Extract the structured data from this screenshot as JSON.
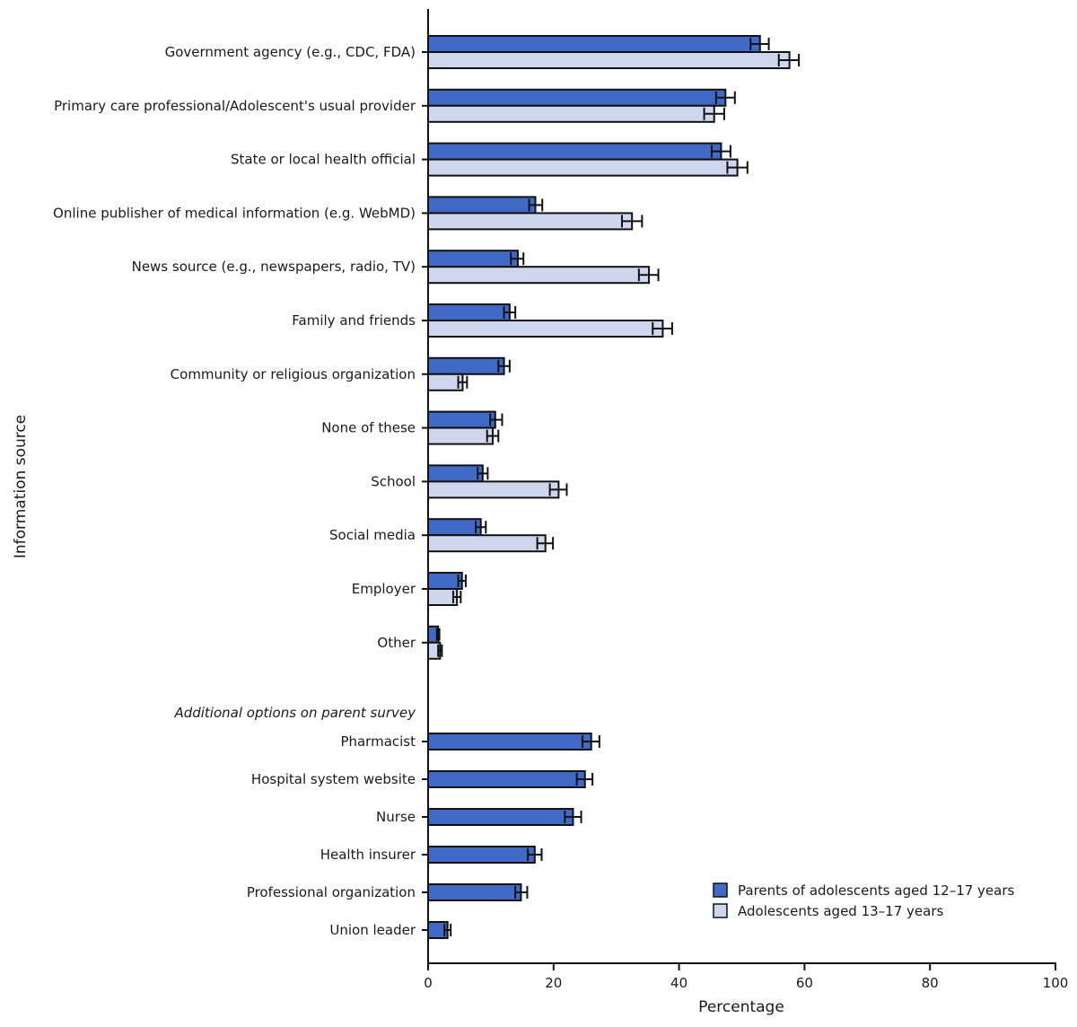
{
  "chart_data": {
    "type": "bar",
    "orientation": "horizontal",
    "xlabel": "Percentage",
    "ylabel": "Information source",
    "xlim": [
      0,
      100
    ],
    "xticks": [
      0,
      20,
      40,
      60,
      80,
      100
    ],
    "grid": false,
    "legend_position": "bottom-right",
    "colors": {
      "parents": "#4169c6",
      "adolescents": "#cfd7ee"
    },
    "series": [
      {
        "name": "Parents of adolescents aged 12–17 years",
        "key": "parents"
      },
      {
        "name": "Adolescents aged 13–17 years",
        "key": "adolescents"
      }
    ],
    "categories": [
      {
        "label": "Government agency (e.g., CDC, FDA)",
        "parents": [
          52.9,
          51.4,
          54.3
        ],
        "adolescents": [
          57.6,
          55.9,
          59.1
        ]
      },
      {
        "label": "Primary care professional/Adolescent's usual provider",
        "parents": [
          47.4,
          45.9,
          48.9
        ],
        "adolescents": [
          45.6,
          44.0,
          47.2
        ]
      },
      {
        "label": "State or local health official",
        "parents": [
          46.7,
          45.2,
          48.2
        ],
        "adolescents": [
          49.3,
          47.7,
          50.9
        ]
      },
      {
        "label": "Online publisher of medical information (e.g. WebMD)",
        "parents": [
          17.1,
          16.1,
          18.2
        ],
        "adolescents": [
          32.5,
          30.9,
          34.1
        ]
      },
      {
        "label": "News source (e.g., newspapers, radio, TV)",
        "parents": [
          14.3,
          13.2,
          15.2
        ],
        "adolescents": [
          35.2,
          33.6,
          36.7
        ]
      },
      {
        "label": "Family and friends",
        "parents": [
          13.0,
          12.1,
          13.9
        ],
        "adolescents": [
          37.4,
          35.8,
          38.9
        ]
      },
      {
        "label": "Community or religious organization",
        "parents": [
          12.1,
          11.2,
          13.0
        ],
        "adolescents": [
          5.5,
          4.8,
          6.2
        ]
      },
      {
        "label": "None of these",
        "parents": [
          10.7,
          9.9,
          11.8
        ],
        "adolescents": [
          10.3,
          9.4,
          11.2
        ]
      },
      {
        "label": "School",
        "parents": [
          8.7,
          7.9,
          9.5
        ],
        "adolescents": [
          20.8,
          19.4,
          22.1
        ]
      },
      {
        "label": "Social media",
        "parents": [
          8.4,
          7.6,
          9.2
        ],
        "adolescents": [
          18.7,
          17.4,
          19.9
        ]
      },
      {
        "label": "Employer",
        "parents": [
          5.4,
          4.8,
          6.0
        ],
        "adolescents": [
          4.6,
          4.0,
          5.2
        ]
      },
      {
        "label": "Other",
        "parents": [
          1.6,
          1.4,
          1.8
        ],
        "adolescents": [
          1.9,
          1.6,
          2.2
        ]
      }
    ],
    "value_format": "[estimate, lower 95% CI, upper 95% CI]",
    "section_label": "Additional options on parent survey",
    "parent_only_categories": [
      {
        "label": "Pharmacist",
        "parents": [
          26.0,
          24.6,
          27.3
        ]
      },
      {
        "label": "Hospital system website",
        "parents": [
          25.0,
          23.7,
          26.2
        ]
      },
      {
        "label": "Nurse",
        "parents": [
          23.1,
          21.8,
          24.4
        ]
      },
      {
        "label": "Health insurer",
        "parents": [
          17.0,
          15.9,
          18.1
        ]
      },
      {
        "label": "Professional organization",
        "parents": [
          14.8,
          13.9,
          15.8
        ]
      },
      {
        "label": "Union leader",
        "parents": [
          3.1,
          2.6,
          3.6
        ]
      }
    ]
  }
}
